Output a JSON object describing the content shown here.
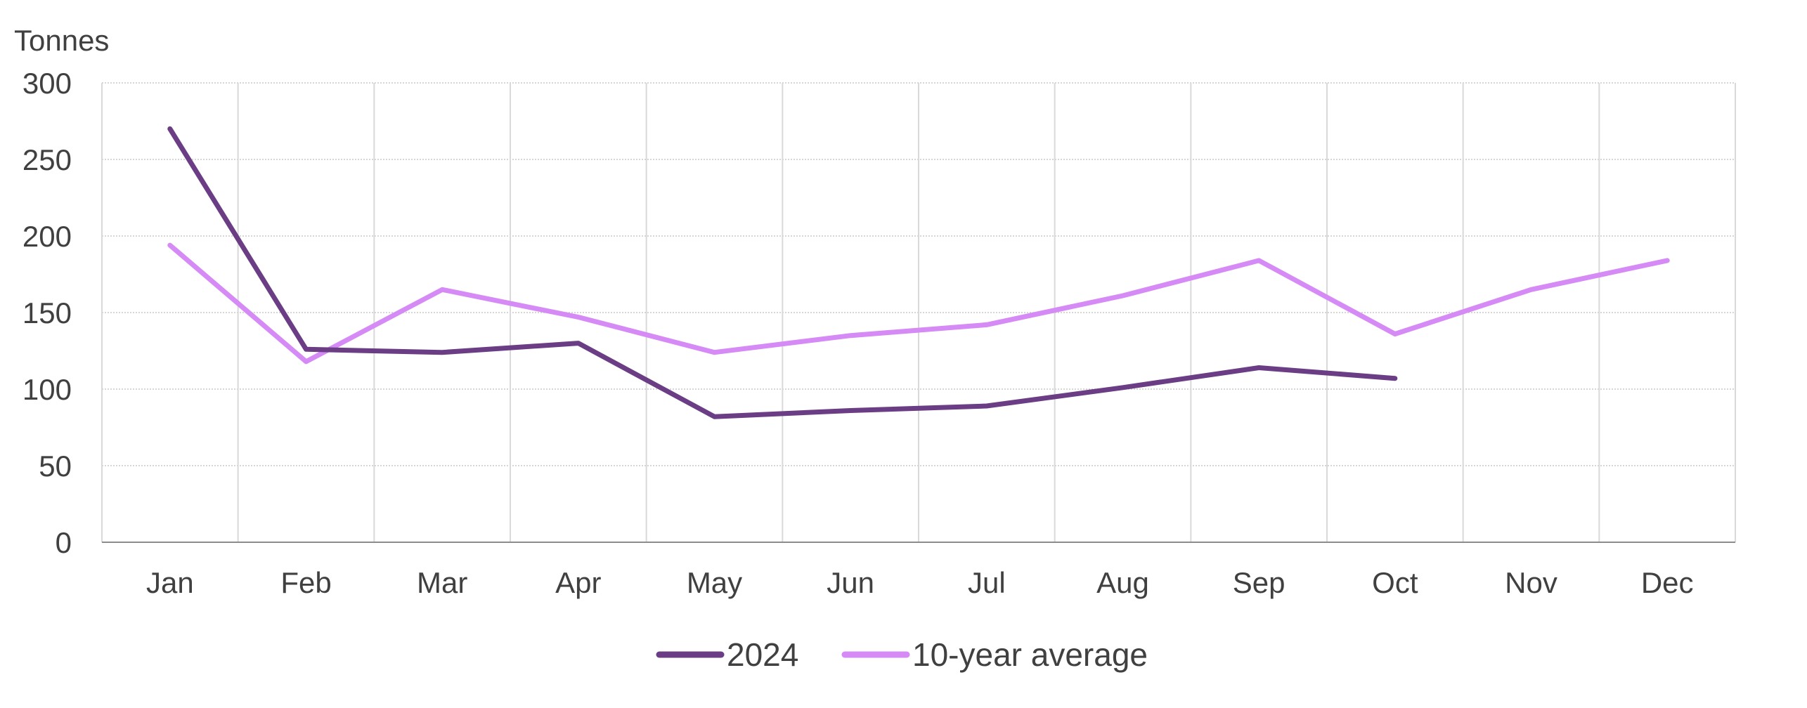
{
  "chart_data": {
    "type": "line",
    "ylabel": "Tonnes",
    "xlabel": "",
    "categories": [
      "Jan",
      "Feb",
      "Mar",
      "Apr",
      "May",
      "Jun",
      "Jul",
      "Aug",
      "Sep",
      "Oct",
      "Nov",
      "Dec"
    ],
    "ylim": [
      0,
      300
    ],
    "yticks": [
      "0",
      "50",
      "100",
      "150",
      "200",
      "250",
      "300"
    ],
    "grid": true,
    "legend_position": "bottom",
    "series": [
      {
        "name": "2024",
        "color": "#6b3d84",
        "values": [
          270,
          126,
          124,
          130,
          82,
          86,
          89,
          101,
          114,
          107,
          null,
          null
        ]
      },
      {
        "name": "10-year average",
        "color": "#d58af5",
        "values": [
          194,
          118,
          165,
          147,
          124,
          135,
          142,
          161,
          184,
          136,
          165,
          184
        ]
      }
    ]
  }
}
